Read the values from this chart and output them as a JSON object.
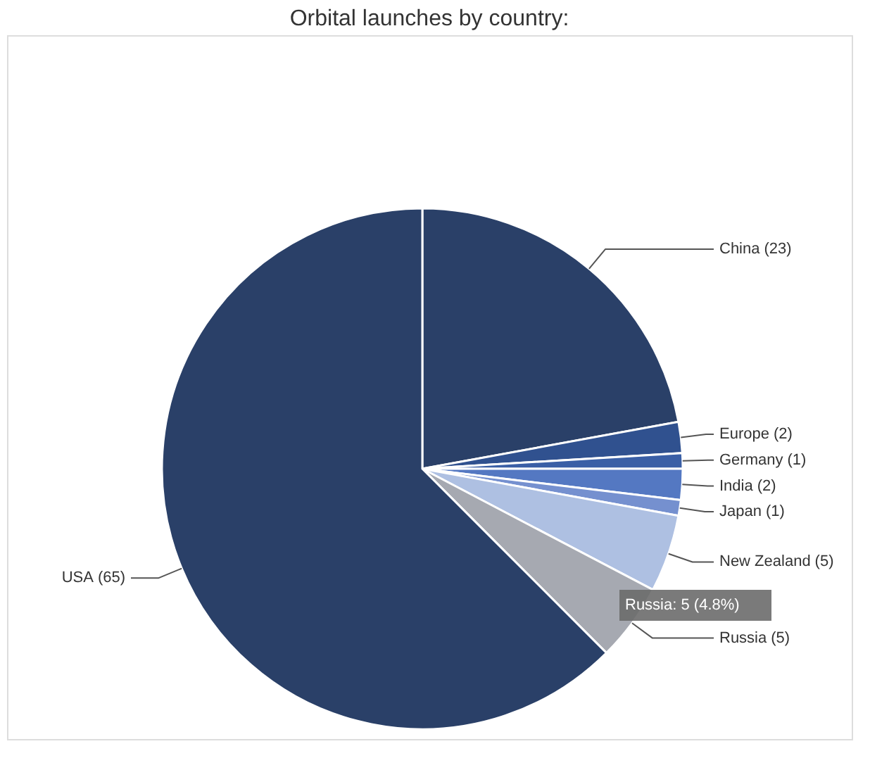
{
  "chart_data": {
    "type": "pie",
    "title": "Orbital launches by country:",
    "categories": [
      "China",
      "Europe",
      "Germany",
      "India",
      "Japan",
      "New Zealand",
      "Russia",
      "USA"
    ],
    "values": [
      23,
      2,
      1,
      2,
      1,
      5,
      5,
      65
    ],
    "colors": [
      "#2a4068",
      "#30518f",
      "#3a5fa6",
      "#5478c2",
      "#7590cf",
      "#aec0e2",
      "#a6a9b1",
      "#2a4068"
    ],
    "value_labels": [
      "(23)",
      "(2)",
      "(1)",
      "(2)",
      "(1)",
      "(5)",
      "(5)",
      "(65)"
    ],
    "legend": false,
    "annotations": [
      "Russia: 5 (4.8%)"
    ]
  }
}
